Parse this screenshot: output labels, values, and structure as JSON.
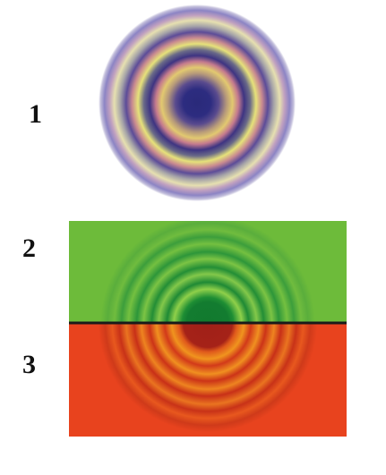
{
  "labels": {
    "one": "1",
    "two": "2",
    "three": "3"
  },
  "colors": {
    "background": "#ffffff",
    "top_panel": "#6dbb3a",
    "bottom_panel": "#e8431e",
    "divider": "#1a1a1a",
    "center_dark_blue": "#2a2a78",
    "center_dark_green": "#127a2e",
    "center_dark_red": "#a02018"
  },
  "figures": [
    {
      "id": "1",
      "kind": "colored-ring-pattern"
    },
    {
      "id": "2",
      "kind": "green-ring-pattern-upper-half"
    },
    {
      "id": "3",
      "kind": "red-ring-pattern-lower-half"
    }
  ]
}
